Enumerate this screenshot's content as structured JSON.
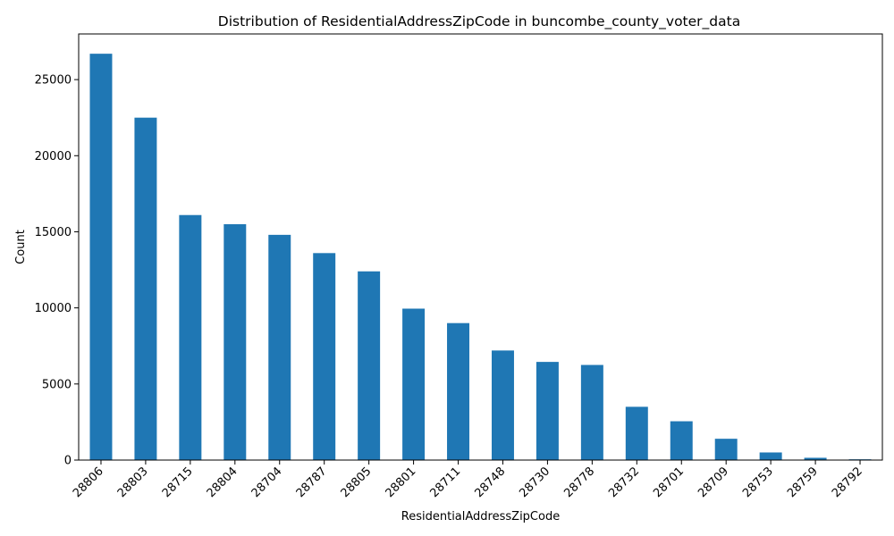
{
  "chart_data": {
    "type": "bar",
    "title": "Distribution of ResidentialAddressZipCode in buncombe_county_voter_data",
    "xlabel": "ResidentialAddressZipCode",
    "ylabel": "Count",
    "categories": [
      "28806",
      "28803",
      "28715",
      "28804",
      "28704",
      "28787",
      "28805",
      "28801",
      "28711",
      "28748",
      "28730",
      "28778",
      "28732",
      "28701",
      "28709",
      "28753",
      "28759",
      "28792"
    ],
    "values": [
      26700,
      22500,
      16100,
      15500,
      14800,
      13600,
      12400,
      9950,
      9000,
      7200,
      6450,
      6250,
      3500,
      2550,
      1400,
      500,
      150,
      50
    ],
    "ylim": [
      0,
      28000
    ],
    "yticks": [
      0,
      5000,
      10000,
      15000,
      20000,
      25000
    ],
    "bar_color": "#1f77b4",
    "grid": false,
    "legend": "none"
  }
}
